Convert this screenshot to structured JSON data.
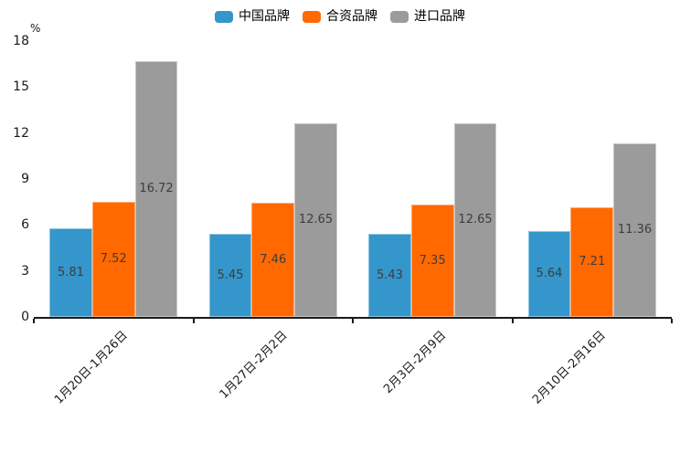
{
  "chart_data": {
    "type": "bar",
    "title": "",
    "ylabel": "%",
    "xlabel": "",
    "categories": [
      "1月20日-1月26日",
      "1月27日-2月2日",
      "2月3日-2月9日",
      "2月10日-2月16日"
    ],
    "series": [
      {
        "name": "中国品牌",
        "color": "#3496CB",
        "values": [
          5.81,
          5.45,
          5.43,
          5.64
        ]
      },
      {
        "name": "合资品牌",
        "color": "#FF6900",
        "values": [
          7.52,
          7.46,
          7.35,
          7.21
        ]
      },
      {
        "name": "进口品牌",
        "color": "#9B9B9B",
        "values": [
          16.72,
          12.65,
          12.65,
          11.36
        ]
      }
    ],
    "yticks": [
      0,
      3,
      6,
      9,
      12,
      15,
      18
    ],
    "ylim": [
      0,
      18
    ],
    "legend_position": "top",
    "grid": false,
    "value_labels": true,
    "axis_color": "#1a1a1a",
    "value_label_color": "#3d3d3d"
  }
}
